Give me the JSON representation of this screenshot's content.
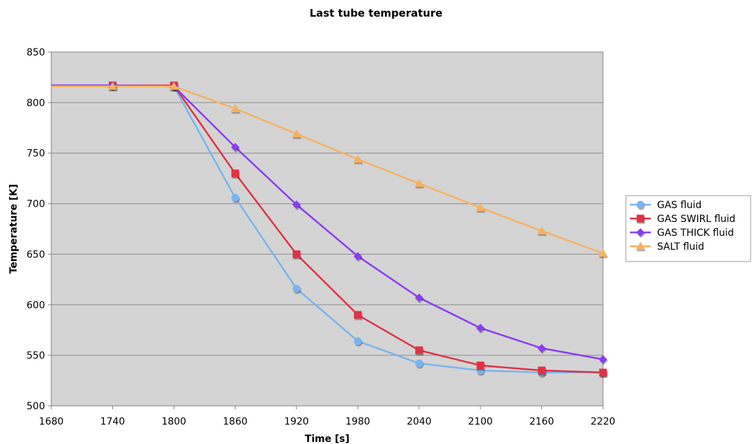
{
  "chart_data": {
    "type": "line",
    "title": "Last tube temperature",
    "xlabel": "Time [s]",
    "ylabel": "Temperature [K]",
    "xlim": [
      1680,
      2220
    ],
    "ylim": [
      500,
      850
    ],
    "xticks": [
      1680,
      1740,
      1800,
      1860,
      1920,
      1980,
      2040,
      2100,
      2160,
      2220
    ],
    "yticks": [
      500,
      550,
      600,
      650,
      700,
      750,
      800,
      850
    ],
    "grid": true,
    "legend_position": "right",
    "x": [
      1680,
      1740,
      1800,
      1860,
      1920,
      1980,
      2040,
      2100,
      2160,
      2220
    ],
    "series": [
      {
        "name": "GAS fluid",
        "color": "#7ab4f0",
        "marker": "circle",
        "values": [
          817,
          817,
          816,
          706,
          616,
          564,
          542,
          535,
          533,
          533
        ]
      },
      {
        "name": "GAS SWIRL fluid",
        "color": "#e03245",
        "marker": "square",
        "values": [
          817,
          817,
          817,
          730,
          650,
          590,
          555,
          540,
          535,
          533
        ]
      },
      {
        "name": "GAS THICK fluid",
        "color": "#8a3cf0",
        "marker": "diamond",
        "values": [
          817,
          817,
          816,
          756,
          699,
          648,
          607,
          577,
          557,
          546
        ]
      },
      {
        "name": "SALT fluid",
        "color": "#f7b160",
        "marker": "triangle",
        "values": [
          816,
          816,
          816,
          794,
          769,
          744,
          720,
          696,
          673,
          651
        ]
      }
    ]
  }
}
